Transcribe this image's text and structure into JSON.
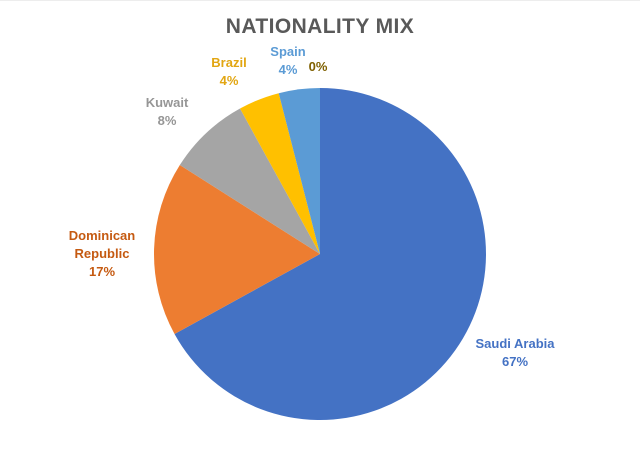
{
  "chart_data": {
    "type": "pie",
    "title": "NATIONALITY MIX",
    "title_color": "#595959",
    "start_angle_deg": 0,
    "direction": "clockwise",
    "legend": "none",
    "labels_position": "outside",
    "slices": [
      {
        "label": "Saudi Arabia",
        "value": 67,
        "pct_label": "67%",
        "color": "#4472C4",
        "label_color": "#4472C4"
      },
      {
        "label": "Dominican Republic",
        "value": 17,
        "pct_label": "17%",
        "color": "#ED7D31",
        "label_color": "#C55A11"
      },
      {
        "label": "Kuwait",
        "value": 8,
        "pct_label": "8%",
        "color": "#A5A5A5",
        "label_color": "#969696"
      },
      {
        "label": "Brazil",
        "value": 4,
        "pct_label": "4%",
        "color": "#FFC000",
        "label_color": "#E2A612"
      },
      {
        "label": "Spain",
        "value": 4,
        "pct_label": "4%",
        "color": "#5B9BD5",
        "label_color": "#5B9BD5"
      },
      {
        "label": "",
        "value": 0,
        "pct_label": "0%",
        "color": "",
        "label_color": "#7F6000"
      }
    ]
  }
}
